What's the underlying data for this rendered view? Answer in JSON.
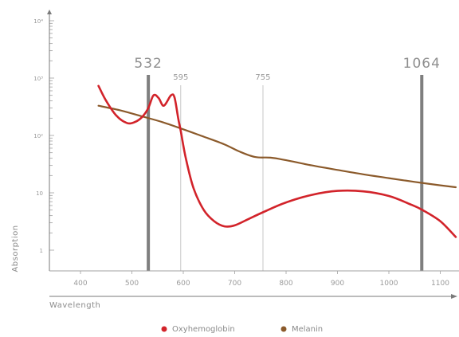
{
  "chart_data": {
    "type": "line",
    "xlabel": "Wavelength",
    "ylabel": "Absorption",
    "x_scale": "linear",
    "y_scale": "log",
    "xlim": [
      340,
      1130
    ],
    "ylim": [
      0.6,
      10000
    ],
    "x_ticks": [
      "400",
      "500",
      "600",
      "700",
      "800",
      "900",
      "1000",
      "1100"
    ],
    "y_ticks": [
      "1",
      "10",
      "10²",
      "10³",
      "10⁴"
    ],
    "vertical_lines": [
      {
        "label": "532",
        "x": 532,
        "style": "thick"
      },
      {
        "label": "595",
        "x": 595,
        "style": "thin"
      },
      {
        "label": "755",
        "x": 755,
        "style": "thin"
      },
      {
        "label": "1064",
        "x": 1064,
        "style": "thick"
      }
    ],
    "series": [
      {
        "name": "Oxyhemoglobin",
        "color": "#d2232a",
        "points": [
          [
            435,
            730
          ],
          [
            450,
            400
          ],
          [
            470,
            220
          ],
          [
            490,
            165
          ],
          [
            505,
            170
          ],
          [
            520,
            210
          ],
          [
            532,
            300
          ],
          [
            542,
            500
          ],
          [
            552,
            450
          ],
          [
            562,
            330
          ],
          [
            576,
            500
          ],
          [
            583,
            460
          ],
          [
            590,
            200
          ],
          [
            595,
            120
          ],
          [
            605,
            40
          ],
          [
            620,
            12
          ],
          [
            640,
            5
          ],
          [
            660,
            3.2
          ],
          [
            680,
            2.6
          ],
          [
            700,
            2.7
          ],
          [
            730,
            3.6
          ],
          [
            760,
            4.8
          ],
          [
            800,
            6.8
          ],
          [
            850,
            9.2
          ],
          [
            900,
            10.8
          ],
          [
            950,
            10.6
          ],
          [
            1000,
            8.8
          ],
          [
            1040,
            6.4
          ],
          [
            1064,
            5.1
          ],
          [
            1100,
            3.2
          ],
          [
            1130,
            1.7
          ]
        ]
      },
      {
        "name": "Melanin",
        "color": "#8b5a2b",
        "points": [
          [
            435,
            330
          ],
          [
            480,
            270
          ],
          [
            520,
            215
          ],
          [
            560,
            170
          ],
          [
            600,
            128
          ],
          [
            640,
            95
          ],
          [
            680,
            70
          ],
          [
            710,
            52
          ],
          [
            740,
            42
          ],
          [
            770,
            41
          ],
          [
            800,
            37
          ],
          [
            850,
            30
          ],
          [
            900,
            25
          ],
          [
            950,
            21
          ],
          [
            1000,
            18
          ],
          [
            1050,
            15.5
          ],
          [
            1100,
            13.5
          ],
          [
            1130,
            12.5
          ]
        ]
      }
    ],
    "legend": {
      "placement": "bottom-center",
      "entries": [
        "Oxyhemoglobin",
        "Melanin"
      ]
    }
  }
}
